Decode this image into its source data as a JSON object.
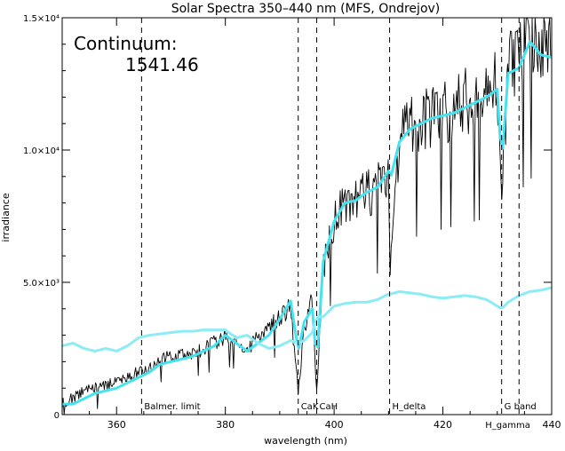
{
  "chart_data": {
    "type": "line",
    "title": "Solar Spectra 350–440 nm (MFS, Ondrejov)",
    "xlabel": "wavelength (nm)",
    "ylabel": "irradiance",
    "xlim": [
      350,
      440
    ],
    "ylim": [
      0,
      15000
    ],
    "x_ticks": [
      360,
      380,
      400,
      420,
      440
    ],
    "x_tick_labels": [
      "360",
      "380",
      "400",
      "420",
      "440"
    ],
    "y_ticks": [
      0,
      5000,
      10000,
      15000
    ],
    "y_tick_labels": [
      "0",
      "5.0×10³",
      "1.0×10⁴",
      "1.5×10⁴"
    ],
    "grid": false,
    "annotation": {
      "label": "Continuum:",
      "value": "1541.46"
    },
    "markers": [
      {
        "x": 364.6,
        "label": "Balmer. limit"
      },
      {
        "x": 393.4,
        "label": "CaK"
      },
      {
        "x": 396.8,
        "label": "CaH"
      },
      {
        "x": 410.2,
        "label": "H_delta"
      },
      {
        "x": 430.8,
        "label": "G band"
      },
      {
        "x": 434.0,
        "label": "H_gamma"
      }
    ],
    "series": [
      {
        "color": "#000000",
        "style": "noisy-raw",
        "x": [
          350,
          352,
          354,
          356,
          358,
          360,
          362,
          364,
          366,
          368,
          370,
          372,
          374,
          376,
          378,
          380,
          382,
          384,
          386,
          388,
          390,
          392,
          393.4,
          394.5,
          396,
          396.8,
          398,
          400,
          402,
          404,
          406,
          408,
          410,
          410.2,
          412,
          414,
          416,
          418,
          420,
          422,
          424,
          426,
          428,
          430,
          430.8,
          432,
          434,
          436,
          438,
          440
        ],
        "y": [
          400,
          700,
          900,
          1100,
          1100,
          1200,
          1400,
          1600,
          1800,
          2100,
          2200,
          2300,
          2300,
          2500,
          2700,
          3000,
          2800,
          2500,
          2900,
          3300,
          3700,
          4000,
          900,
          3200,
          4300,
          700,
          5500,
          7300,
          8000,
          8200,
          8300,
          8700,
          9300,
          5000,
          10400,
          10900,
          11000,
          11300,
          11400,
          11600,
          11800,
          11900,
          12100,
          12500,
          8000,
          13400,
          13600,
          14600,
          13900,
          14000
        ]
      },
      {
        "color": "#44e3ef",
        "style": "smoothed",
        "x": [
          350,
          352,
          354,
          356,
          358,
          360,
          362,
          364,
          366,
          368,
          370,
          372,
          374,
          376,
          378,
          380,
          382,
          384,
          386,
          388,
          390,
          392,
          393.4,
          394.5,
          396,
          396.8,
          398,
          400,
          402,
          404,
          406,
          408,
          410,
          410.2,
          412,
          414,
          416,
          418,
          420,
          422,
          424,
          426,
          428,
          430,
          430.8,
          432,
          434,
          436,
          438,
          440
        ],
        "y": [
          400,
          400,
          600,
          800,
          900,
          1000,
          1200,
          1400,
          1600,
          1900,
          2000,
          2100,
          2200,
          2400,
          2600,
          3000,
          2700,
          2400,
          2700,
          3000,
          3600,
          4300,
          2400,
          3500,
          4000,
          1900,
          5800,
          7300,
          8000,
          8100,
          8400,
          8600,
          9200,
          8800,
          10300,
          10800,
          11000,
          11200,
          11300,
          11400,
          11600,
          11800,
          12000,
          12300,
          9500,
          12900,
          13100,
          14100,
          13600,
          13500
        ]
      },
      {
        "color": "#8cecf5",
        "style": "continuum",
        "x": [
          350,
          352,
          354,
          356,
          358,
          360,
          362,
          364,
          366,
          368,
          370,
          372,
          374,
          376,
          378,
          380,
          382,
          384,
          386,
          388,
          390,
          392,
          393.4,
          394.5,
          396,
          396.8,
          398,
          400,
          402,
          404,
          406,
          408,
          410,
          410.2,
          412,
          414,
          416,
          418,
          420,
          422,
          424,
          426,
          428,
          430,
          430.8,
          432,
          434,
          436,
          438,
          440
        ],
        "y": [
          2600,
          2700,
          2500,
          2400,
          2500,
          2400,
          2600,
          2900,
          3000,
          3050,
          3100,
          3150,
          3150,
          3200,
          3200,
          3200,
          2900,
          3000,
          2700,
          2500,
          2600,
          2800,
          2700,
          2800,
          3100,
          3700,
          3700,
          4100,
          4200,
          4250,
          4250,
          4350,
          4550,
          4550,
          4650,
          4600,
          4550,
          4450,
          4400,
          4450,
          4500,
          4450,
          4350,
          4100,
          4000,
          4250,
          4500,
          4650,
          4700,
          4800
        ]
      }
    ]
  }
}
